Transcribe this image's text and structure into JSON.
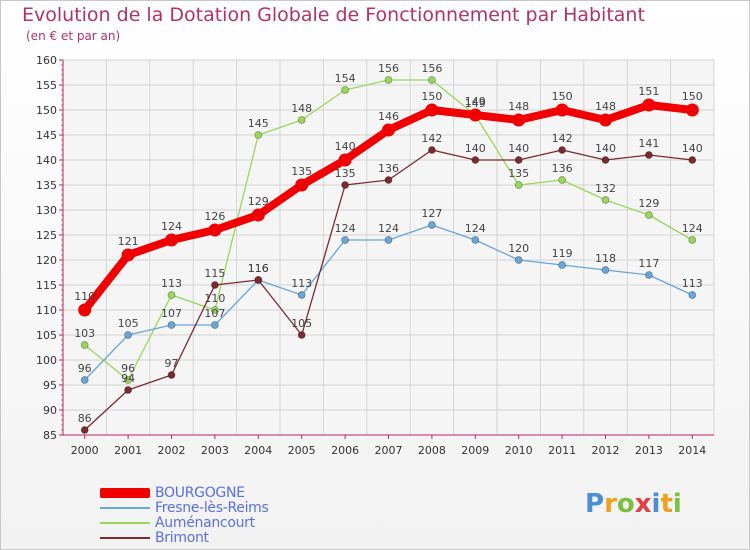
{
  "header": {
    "title": "Evolution de la Dotation Globale de Fonctionnement par Habitant",
    "subtitle": "(en € et par an)"
  },
  "logo": {
    "letters": [
      "P",
      "r",
      "o",
      "x",
      "i",
      "t",
      "i"
    ],
    "colors": [
      "#4a8fd6",
      "#f0a020",
      "#7cc040",
      "#e04040",
      "#4a8fd6",
      "#f0a020",
      "#7cc040"
    ]
  },
  "chart_data": {
    "type": "line",
    "title": "Evolution de la Dotation Globale de Fonctionnement par Habitant",
    "subtitle": "(en € et par an)",
    "xlabel": "",
    "ylabel": "",
    "x": [
      "2000",
      "2001",
      "2002",
      "2003",
      "2004",
      "2005",
      "2006",
      "2007",
      "2008",
      "2009",
      "2010",
      "2011",
      "2012",
      "2013",
      "2014"
    ],
    "ylim": [
      85,
      160
    ],
    "yticks": [
      85,
      90,
      95,
      100,
      105,
      110,
      115,
      120,
      125,
      130,
      135,
      140,
      145,
      150,
      155,
      160
    ],
    "grid": true,
    "legend_position": "bottom-left",
    "series": [
      {
        "name": "Aumenancourt",
        "label": "Auménancourt",
        "color": "#9ad65a",
        "values": [
          103,
          96,
          113,
          110,
          145,
          148,
          154,
          156,
          156,
          149,
          135,
          136,
          132,
          129,
          124
        ],
        "data_labels": [
          "103",
          "96",
          "113",
          "110",
          "145",
          "148",
          "154",
          "156",
          "156",
          "149",
          "135",
          "136",
          "132",
          "129",
          "124"
        ]
      },
      {
        "name": "Fresne",
        "label": "Fresne-lès-Reims",
        "color": "#6aa5d8",
        "values": [
          96,
          105,
          107,
          107,
          116,
          113,
          124,
          124,
          127,
          124,
          120,
          119,
          118,
          117,
          113
        ],
        "data_labels": [
          "96",
          "105",
          "107",
          "107",
          "116",
          "113",
          "124",
          "124",
          "127",
          "124",
          "120",
          "119",
          "118",
          "117",
          "113"
        ]
      },
      {
        "name": "Brimont",
        "label": "Brimont",
        "color": "#7a2a30",
        "values": [
          86,
          94,
          97,
          115,
          116,
          105,
          135,
          136,
          142,
          140,
          140,
          142,
          140,
          141,
          140
        ],
        "data_labels": [
          "86",
          "94",
          "97",
          "115",
          "116",
          "105",
          "135",
          "136",
          "142",
          "140",
          "140",
          "142",
          "140",
          "141",
          "140"
        ]
      },
      {
        "name": "Bourgogne",
        "label": "BOURGOGNE",
        "color": "#f00000",
        "values": [
          110,
          121,
          124,
          126,
          129,
          135,
          140,
          146,
          150,
          149,
          148,
          150,
          148,
          151,
          150
        ],
        "data_labels": [
          "110",
          "121",
          "124",
          "126",
          "129",
          "135",
          "140",
          "146",
          "150",
          "149",
          "148",
          "150",
          "148",
          "151",
          "150"
        ]
      }
    ],
    "legend": [
      "BOURGOGNE",
      "Fresne-lès-Reims",
      "Auménancourt",
      "Brimont"
    ]
  }
}
